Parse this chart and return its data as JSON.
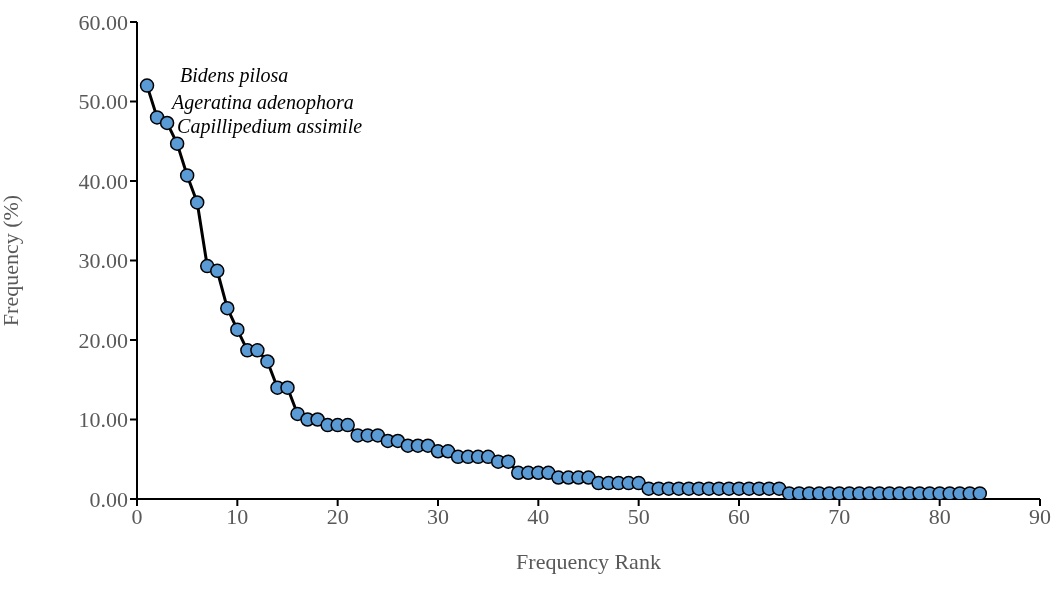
{
  "chart_data": {
    "type": "line",
    "xlabel": "Frequency Rank",
    "ylabel": "Frequency (%)",
    "x": [
      1,
      2,
      3,
      4,
      5,
      6,
      7,
      8,
      9,
      10,
      11,
      12,
      13,
      14,
      15,
      16,
      17,
      18,
      19,
      20,
      21,
      22,
      23,
      24,
      25,
      26,
      27,
      28,
      29,
      30,
      31,
      32,
      33,
      34,
      35,
      36,
      37,
      38,
      39,
      40,
      41,
      42,
      43,
      44,
      45,
      46,
      47,
      48,
      49,
      50,
      51,
      52,
      53,
      54,
      55,
      56,
      57,
      58,
      59,
      60,
      61,
      62,
      63,
      64,
      65,
      66,
      67,
      68,
      69,
      70,
      71,
      72,
      73,
      74,
      75,
      76,
      77,
      78,
      79,
      80,
      81,
      82,
      83,
      84
    ],
    "series": [
      {
        "color": "#5b9bd5",
        "values": [
          52.0,
          48.0,
          47.3,
          44.7,
          40.7,
          37.3,
          29.3,
          28.7,
          24.0,
          21.3,
          18.7,
          18.7,
          17.3,
          14.0,
          14.0,
          10.7,
          10.0,
          10.0,
          9.3,
          9.3,
          9.3,
          8.0,
          8.0,
          8.0,
          7.3,
          7.3,
          6.7,
          6.7,
          6.7,
          6.0,
          6.0,
          5.3,
          5.3,
          5.3,
          5.3,
          4.7,
          4.7,
          3.3,
          3.3,
          3.3,
          3.3,
          2.7,
          2.7,
          2.7,
          2.7,
          2.0,
          2.0,
          2.0,
          2.0,
          2.0,
          1.3,
          1.3,
          1.3,
          1.3,
          1.3,
          1.3,
          1.3,
          1.3,
          1.3,
          1.3,
          1.3,
          1.3,
          1.3,
          1.3,
          0.7,
          0.7,
          0.7,
          0.7,
          0.7,
          0.7,
          0.7,
          0.7,
          0.7,
          0.7,
          0.7,
          0.7,
          0.7,
          0.7,
          0.7,
          0.7,
          0.7,
          0.7,
          0.7,
          0.7
        ]
      }
    ],
    "xlim": [
      0,
      90
    ],
    "xticks": [
      0,
      10,
      20,
      30,
      40,
      50,
      60,
      70,
      80,
      90
    ],
    "ylim": [
      0,
      60
    ],
    "yticks": [
      {
        "value": 0,
        "label": "0.00"
      },
      {
        "value": 10,
        "label": "10.00"
      },
      {
        "value": 20,
        "label": "20.00"
      },
      {
        "value": 30,
        "label": "30.00"
      },
      {
        "value": 40,
        "label": "40.00"
      },
      {
        "value": 50,
        "label": "50.00"
      },
      {
        "value": 60,
        "label": "60.00"
      }
    ],
    "marker": "circle",
    "line_style": "solid",
    "grid": false,
    "legend": false,
    "annotations": [
      {
        "text": "Bidens pilosa",
        "x": 1,
        "y": 52.0
      },
      {
        "text": "Ageratina adenophora",
        "x": 2,
        "y": 48.0
      },
      {
        "text": "Capillipedium assimile",
        "x": 3,
        "y": 47.3
      }
    ]
  }
}
